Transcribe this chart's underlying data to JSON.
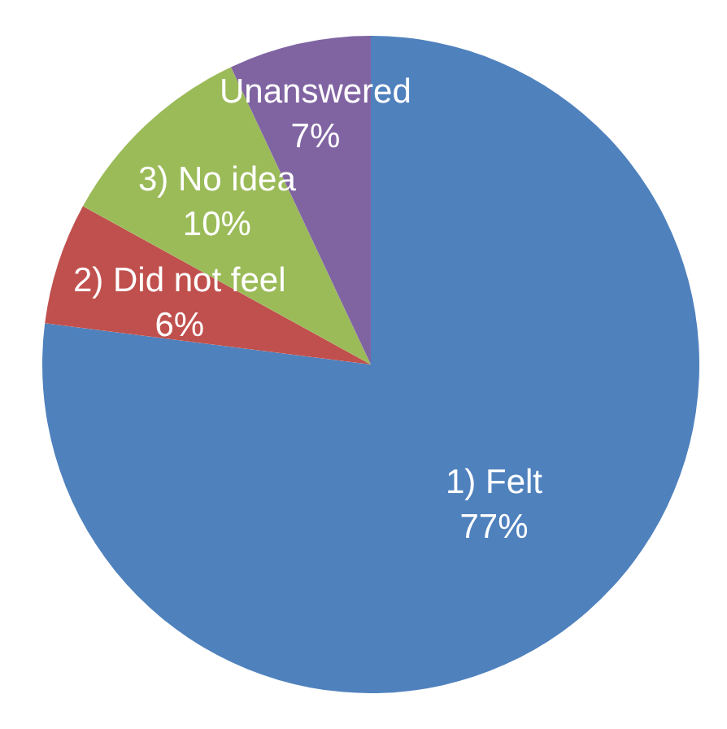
{
  "chart_data": {
    "type": "pie",
    "categories": [
      "1) Felt",
      "2) Did not feel",
      "3) No idea",
      "Unanswered"
    ],
    "values": [
      77,
      6,
      10,
      7
    ],
    "value_labels": [
      "77%",
      "6%",
      "10%",
      "7%"
    ],
    "colors": [
      "#4f81bd",
      "#c0504d",
      "#9bbb59",
      "#8064a2"
    ],
    "legend": false
  }
}
